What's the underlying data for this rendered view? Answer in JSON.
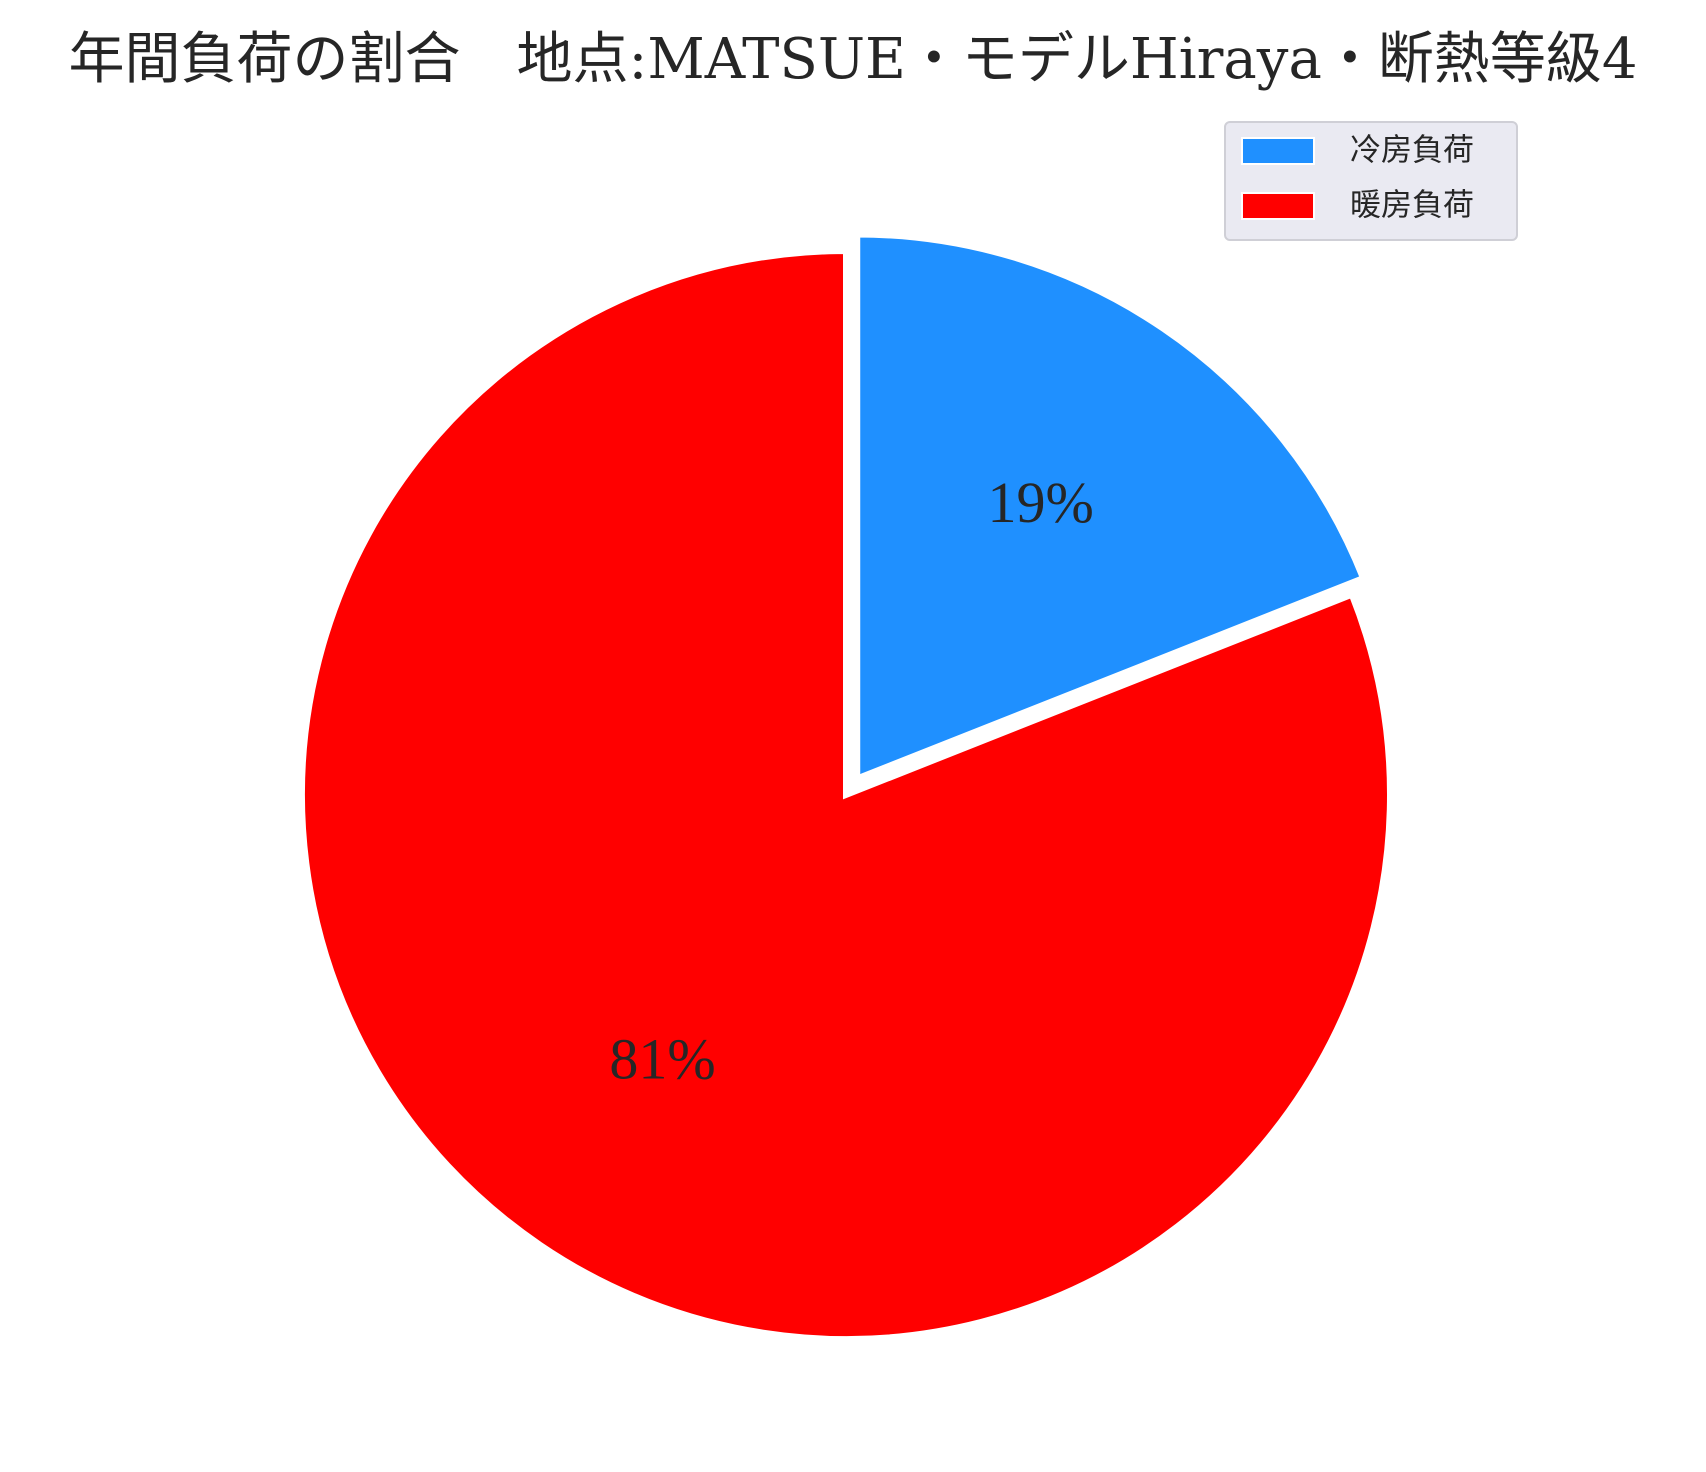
{
  "chart_data": {
    "type": "pie",
    "title": "年間負荷の割合　地点:MATSUE・モデルHiraya・断熱等級4",
    "start_angle": "top, clockwise",
    "legend_placement": "top-right",
    "slices": [
      {
        "label": "冷房負荷",
        "value": 19,
        "display": "19%",
        "color": "#1f90ff",
        "exploded": true
      },
      {
        "label": "暖房負荷",
        "value": 81,
        "display": "81%",
        "color": "#ff0000",
        "exploded": false
      }
    ]
  }
}
